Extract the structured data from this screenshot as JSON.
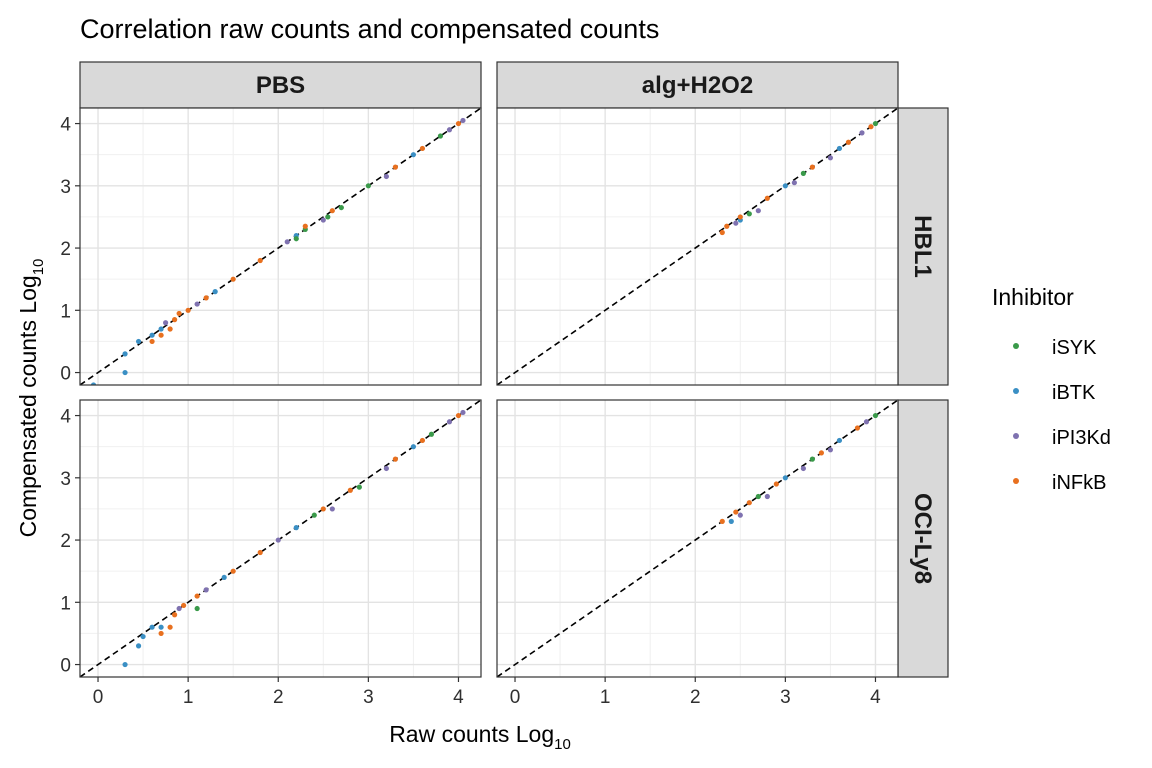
{
  "chart_data": {
    "type": "scatter",
    "title": "Correlation raw counts and compensated counts",
    "xlabel": "Raw counts Log",
    "xlabel_sub": "10",
    "ylabel": "Compensated counts Log",
    "ylabel_sub": "10",
    "xlim": [
      -0.2,
      4.25
    ],
    "ylim": [
      -0.2,
      4.25
    ],
    "x_ticks": [
      0,
      1,
      2,
      3,
      4
    ],
    "y_ticks": [
      0,
      1,
      2,
      3,
      4
    ],
    "grid": true,
    "reference_line": {
      "style": "dashed",
      "slope": 1,
      "intercept": 0,
      "color": "#000000"
    },
    "facet_cols": [
      "PBS",
      "alg+H2O2"
    ],
    "facet_rows": [
      "HBL1",
      "OCI-Ly8"
    ],
    "legend": {
      "title": "Inhibitor",
      "position": "right",
      "entries": [
        {
          "name": "iSYK",
          "color": "#3a9a4a"
        },
        {
          "name": "iBTK",
          "color": "#3a8fc4"
        },
        {
          "name": "iPI3Kd",
          "color": "#7f72b0"
        },
        {
          "name": "iNFkB",
          "color": "#e8701f"
        }
      ]
    },
    "panels": [
      {
        "col": "PBS",
        "row": "HBL1",
        "series": [
          {
            "name": "iBTK",
            "points": [
              [
                -0.05,
                -0.2
              ],
              [
                0.3,
                0.0
              ],
              [
                0.3,
                0.3
              ],
              [
                0.45,
                0.5
              ],
              [
                0.6,
                0.6
              ],
              [
                0.7,
                0.7
              ],
              [
                1.3,
                1.3
              ],
              [
                2.2,
                2.2
              ],
              [
                3.5,
                3.5
              ]
            ]
          },
          {
            "name": "iPI3Kd",
            "points": [
              [
                0.75,
                0.8
              ],
              [
                1.1,
                1.1
              ],
              [
                2.1,
                2.1
              ],
              [
                2.5,
                2.45
              ],
              [
                3.2,
                3.15
              ],
              [
                3.9,
                3.9
              ],
              [
                4.05,
                4.05
              ]
            ]
          },
          {
            "name": "iSYK",
            "points": [
              [
                2.2,
                2.15
              ],
              [
                2.3,
                2.3
              ],
              [
                2.55,
                2.5
              ],
              [
                2.7,
                2.65
              ],
              [
                3.0,
                3.0
              ],
              [
                3.8,
                3.8
              ]
            ]
          },
          {
            "name": "iNFkB",
            "points": [
              [
                0.6,
                0.5
              ],
              [
                0.7,
                0.6
              ],
              [
                0.8,
                0.7
              ],
              [
                0.85,
                0.85
              ],
              [
                0.9,
                0.95
              ],
              [
                1.0,
                1.0
              ],
              [
                1.2,
                1.2
              ],
              [
                1.5,
                1.5
              ],
              [
                1.8,
                1.8
              ],
              [
                2.3,
                2.35
              ],
              [
                2.6,
                2.6
              ],
              [
                3.3,
                3.3
              ],
              [
                3.6,
                3.6
              ],
              [
                4.0,
                4.0
              ]
            ]
          }
        ]
      },
      {
        "col": "alg+H2O2",
        "row": "HBL1",
        "series": [
          {
            "name": "iBTK",
            "points": [
              [
                2.5,
                2.45
              ],
              [
                3.0,
                3.0
              ],
              [
                3.6,
                3.6
              ]
            ]
          },
          {
            "name": "iPI3Kd",
            "points": [
              [
                2.45,
                2.4
              ],
              [
                2.7,
                2.6
              ],
              [
                3.1,
                3.05
              ],
              [
                3.5,
                3.45
              ],
              [
                3.85,
                3.85
              ]
            ]
          },
          {
            "name": "iSYK",
            "points": [
              [
                2.6,
                2.55
              ],
              [
                3.2,
                3.2
              ],
              [
                4.0,
                4.0
              ]
            ]
          },
          {
            "name": "iNFkB",
            "points": [
              [
                2.3,
                2.25
              ],
              [
                2.35,
                2.35
              ],
              [
                2.5,
                2.5
              ],
              [
                2.8,
                2.8
              ],
              [
                3.3,
                3.3
              ],
              [
                3.7,
                3.7
              ],
              [
                3.95,
                3.95
              ]
            ]
          }
        ]
      },
      {
        "col": "PBS",
        "row": "OCI-Ly8",
        "series": [
          {
            "name": "iBTK",
            "points": [
              [
                0.3,
                0.0
              ],
              [
                0.45,
                0.3
              ],
              [
                0.5,
                0.45
              ],
              [
                0.6,
                0.6
              ],
              [
                0.7,
                0.6
              ],
              [
                1.4,
                1.4
              ],
              [
                2.2,
                2.2
              ],
              [
                3.5,
                3.5
              ]
            ]
          },
          {
            "name": "iPI3Kd",
            "points": [
              [
                0.9,
                0.9
              ],
              [
                1.2,
                1.2
              ],
              [
                2.0,
                2.0
              ],
              [
                2.6,
                2.5
              ],
              [
                3.2,
                3.15
              ],
              [
                3.9,
                3.9
              ],
              [
                4.05,
                4.05
              ]
            ]
          },
          {
            "name": "iSYK",
            "points": [
              [
                1.1,
                0.9
              ],
              [
                2.4,
                2.4
              ],
              [
                2.9,
                2.85
              ],
              [
                3.7,
                3.7
              ]
            ]
          },
          {
            "name": "iNFkB",
            "points": [
              [
                0.7,
                0.5
              ],
              [
                0.8,
                0.6
              ],
              [
                0.85,
                0.8
              ],
              [
                0.95,
                0.95
              ],
              [
                1.1,
                1.1
              ],
              [
                1.5,
                1.5
              ],
              [
                1.8,
                1.8
              ],
              [
                2.5,
                2.5
              ],
              [
                2.8,
                2.8
              ],
              [
                3.3,
                3.3
              ],
              [
                3.6,
                3.6
              ],
              [
                4.0,
                4.0
              ]
            ]
          }
        ]
      },
      {
        "col": "alg+H2O2",
        "row": "OCI-Ly8",
        "series": [
          {
            "name": "iBTK",
            "points": [
              [
                2.4,
                2.3
              ],
              [
                3.0,
                3.0
              ],
              [
                3.6,
                3.6
              ]
            ]
          },
          {
            "name": "iPI3Kd",
            "points": [
              [
                2.5,
                2.4
              ],
              [
                2.8,
                2.7
              ],
              [
                3.2,
                3.15
              ],
              [
                3.5,
                3.45
              ],
              [
                3.9,
                3.9
              ]
            ]
          },
          {
            "name": "iSYK",
            "points": [
              [
                2.7,
                2.7
              ],
              [
                3.3,
                3.3
              ],
              [
                4.0,
                4.0
              ]
            ]
          },
          {
            "name": "iNFkB",
            "points": [
              [
                2.3,
                2.3
              ],
              [
                2.45,
                2.45
              ],
              [
                2.6,
                2.6
              ],
              [
                2.9,
                2.9
              ],
              [
                3.4,
                3.4
              ],
              [
                3.8,
                3.8
              ]
            ]
          }
        ]
      }
    ]
  }
}
